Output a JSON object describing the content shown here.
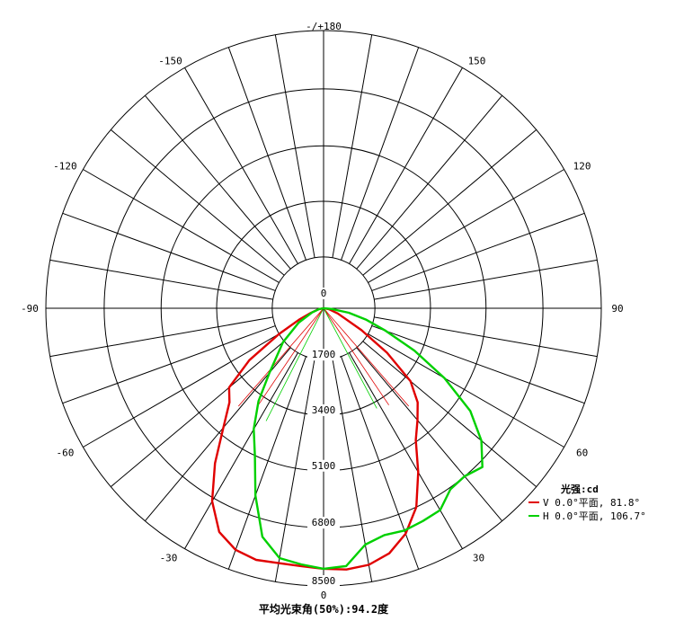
{
  "chart_data": {
    "type": "polar",
    "title": "",
    "angle_labels": [
      {
        "angle": 180,
        "label": "-/+180"
      },
      {
        "angle": 150,
        "label": "150"
      },
      {
        "angle": 120,
        "label": "120"
      },
      {
        "angle": 90,
        "label": "90"
      },
      {
        "angle": 60,
        "label": "60"
      },
      {
        "angle": 30,
        "label": "30"
      },
      {
        "angle": 0,
        "label": "0"
      },
      {
        "angle": -30,
        "label": "-30"
      },
      {
        "angle": -60,
        "label": "-60"
      },
      {
        "angle": -90,
        "label": "-90"
      },
      {
        "angle": -120,
        "label": "-120"
      },
      {
        "angle": -150,
        "label": "-150"
      }
    ],
    "radial_labels": [
      "0",
      "1700",
      "3400",
      "5100",
      "6800",
      "8500"
    ],
    "radial_ticks": [
      0,
      1700,
      3400,
      5100,
      6800,
      8500
    ],
    "r_max": 8500,
    "spoke_step_deg": 10,
    "legend": {
      "title": "光强:cd",
      "placement": "bottom-right"
    },
    "series": [
      {
        "name": "V 0.0°平面, 81.8°",
        "color": "#e00000",
        "points": [
          [
            -90,
            0
          ],
          [
            -80,
            150
          ],
          [
            -70,
            450
          ],
          [
            -65,
            900
          ],
          [
            -60,
            1700
          ],
          [
            -55,
            2900
          ],
          [
            -50,
            3900
          ],
          [
            -45,
            4200
          ],
          [
            -40,
            4900
          ],
          [
            -35,
            5900
          ],
          [
            -30,
            6900
          ],
          [
            -25,
            7600
          ],
          [
            -20,
            7900
          ],
          [
            -15,
            8000
          ],
          [
            -10,
            7950
          ],
          [
            -5,
            7950
          ],
          [
            0,
            8000
          ],
          [
            5,
            8050
          ],
          [
            10,
            8000
          ],
          [
            15,
            7800
          ],
          [
            20,
            7400
          ],
          [
            25,
            6800
          ],
          [
            30,
            5900
          ],
          [
            35,
            5050
          ],
          [
            40,
            4600
          ],
          [
            45,
            4200
          ],
          [
            50,
            3600
          ],
          [
            55,
            2500
          ],
          [
            60,
            1450
          ],
          [
            70,
            500
          ],
          [
            80,
            180
          ],
          [
            90,
            0
          ]
        ]
      },
      {
        "name": "H 0.0°平面, 106.7°",
        "color": "#00d000",
        "points": [
          [
            -90,
            0
          ],
          [
            -80,
            150
          ],
          [
            -70,
            400
          ],
          [
            -60,
            950
          ],
          [
            -50,
            1750
          ],
          [
            -40,
            2700
          ],
          [
            -35,
            3600
          ],
          [
            -30,
            4400
          ],
          [
            -25,
            5100
          ],
          [
            -20,
            6200
          ],
          [
            -15,
            7300
          ],
          [
            -10,
            7800
          ],
          [
            -5,
            7900
          ],
          [
            0,
            8000
          ],
          [
            5,
            7950
          ],
          [
            10,
            7400
          ],
          [
            15,
            7250
          ],
          [
            20,
            7300
          ],
          [
            25,
            7250
          ],
          [
            30,
            7200
          ],
          [
            35,
            6850
          ],
          [
            40,
            6800
          ],
          [
            45,
            6950
          ],
          [
            50,
            6400
          ],
          [
            55,
            5600
          ],
          [
            60,
            4400
          ],
          [
            65,
            3200
          ],
          [
            70,
            2150
          ],
          [
            75,
            1450
          ],
          [
            80,
            850
          ],
          [
            85,
            250
          ],
          [
            90,
            0
          ]
        ]
      }
    ],
    "beam_note": "平均光束角(50%):94.2度"
  }
}
